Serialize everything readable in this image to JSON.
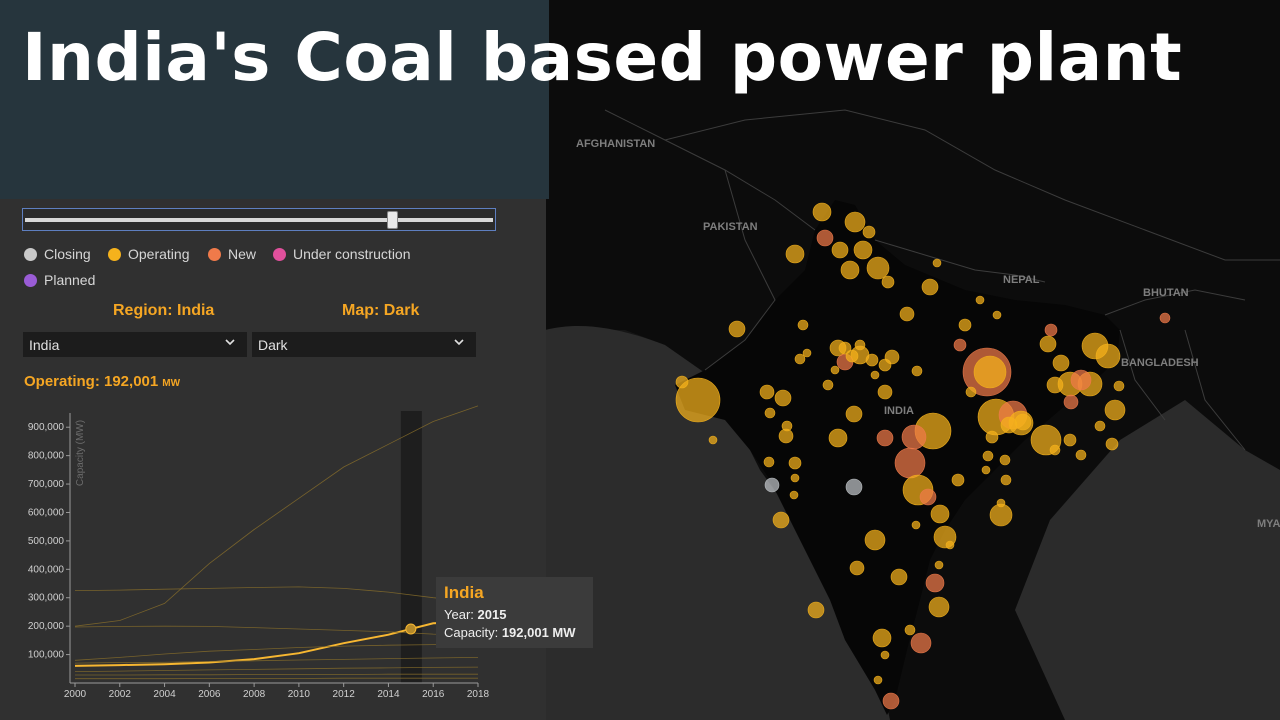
{
  "title": "India's Coal based power plant",
  "map": {
    "countries": [
      "AFGHANISTAN",
      "PAKISTAN",
      "NEPAL",
      "BHUTAN",
      "BANGLADESH",
      "INDIA",
      "MYA"
    ]
  },
  "legend": [
    {
      "label": "Closing",
      "color": "#c9c9c9"
    },
    {
      "label": "Operating",
      "color": "#f5b21c"
    },
    {
      "label": "New",
      "color": "#f07a4a"
    },
    {
      "label": "Under construction",
      "color": "#e0509c"
    },
    {
      "label": "Planned",
      "color": "#9a5cd6"
    }
  ],
  "controls": {
    "region_label": "Region: India",
    "map_label": "Map: Dark",
    "region_value": "India",
    "map_value": "Dark"
  },
  "operating": {
    "text": "Operating: 192,001",
    "unit": "MW"
  },
  "chart_data": {
    "type": "line",
    "ylabel": "Capacity (MW)",
    "xlabel": "",
    "x": [
      2000,
      2002,
      2004,
      2006,
      2008,
      2010,
      2012,
      2014,
      2016,
      2018
    ],
    "xlim": [
      2000,
      2018
    ],
    "ylim": [
      0,
      950000
    ],
    "yticks": [
      "100,000",
      "200,000",
      "300,000",
      "400,000",
      "500,000",
      "600,000",
      "700,000",
      "800,000",
      "900,000"
    ],
    "ytick_values": [
      100000,
      200000,
      300000,
      400000,
      500000,
      600000,
      700000,
      800000,
      900000
    ],
    "highlight_year": 2015,
    "series": [
      {
        "values": [
          60000,
          63000,
          66000,
          72000,
          84000,
          105000,
          140000,
          170000,
          210000,
          215000
        ],
        "highlight": true
      },
      {
        "values": [
          200000,
          220000,
          280000,
          420000,
          540000,
          650000,
          760000,
          840000,
          920000,
          975000
        ]
      },
      {
        "values": [
          325000,
          327000,
          330000,
          333000,
          336000,
          338000,
          333000,
          320000,
          300000,
          285000
        ]
      },
      {
        "values": [
          197000,
          199000,
          200000,
          199000,
          195000,
          190000,
          185000,
          180000,
          172000,
          168000
        ]
      },
      {
        "values": [
          80000,
          90000,
          102000,
          112000,
          118000,
          125000,
          130000,
          133000,
          135000,
          137000
        ]
      },
      {
        "values": [
          70000,
          72000,
          73000,
          76000,
          78000,
          81000,
          83000,
          86000,
          88000,
          90000
        ]
      },
      {
        "values": [
          40000,
          42000,
          44000,
          46000,
          48000,
          50000,
          52000,
          53000,
          55000,
          56000
        ]
      },
      {
        "values": [
          28000,
          28000,
          29000,
          29000,
          30000,
          30000,
          30000,
          31000,
          31000,
          31000
        ]
      },
      {
        "values": [
          15000,
          15000,
          15000,
          16000,
          16000,
          16000,
          17000,
          17000,
          17000,
          17000
        ]
      }
    ]
  },
  "tooltip": {
    "title": "India",
    "year_label": "Year:",
    "year_value": "2015",
    "capacity_label": "Capacity:",
    "capacity_value": "192,001 MW"
  }
}
